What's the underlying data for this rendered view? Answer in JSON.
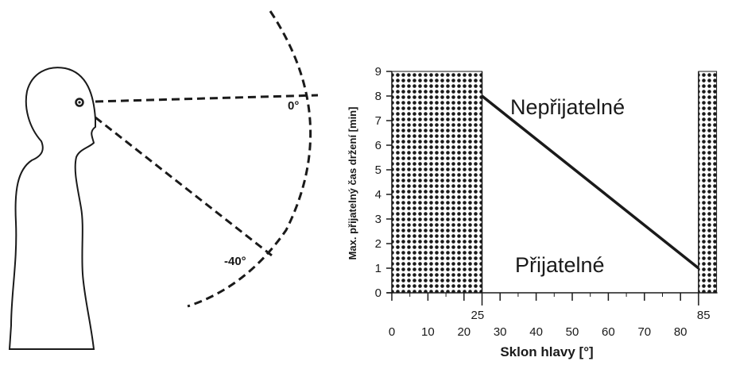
{
  "illustration": {
    "angle_labels": [
      "0°",
      "-40°"
    ]
  },
  "chart_data": {
    "type": "line",
    "xlabel": "Sklon hlavy [°]",
    "ylabel": "Max. přijatelný čas držení [min]",
    "xlim": [
      0,
      90
    ],
    "ylim": [
      0,
      9
    ],
    "x_ticks": [
      0,
      10,
      20,
      30,
      40,
      50,
      60,
      70,
      80
    ],
    "y_ticks": [
      0,
      1,
      2,
      3,
      4,
      5,
      6,
      7,
      8,
      9
    ],
    "series": [
      {
        "x": [
          25,
          85
        ],
        "y": [
          8,
          1
        ]
      }
    ],
    "shaded_regions": [
      {
        "x_from": 0,
        "x_to": 25,
        "label": "25"
      },
      {
        "x_from": 85,
        "x_to": 90,
        "label": "85"
      }
    ],
    "annotations": {
      "above": "Nepřijatelné",
      "below": "Přijatelné"
    },
    "grid": false,
    "colors": {
      "line": "#1a1a1a",
      "hatch": "#1a1a1a"
    }
  }
}
